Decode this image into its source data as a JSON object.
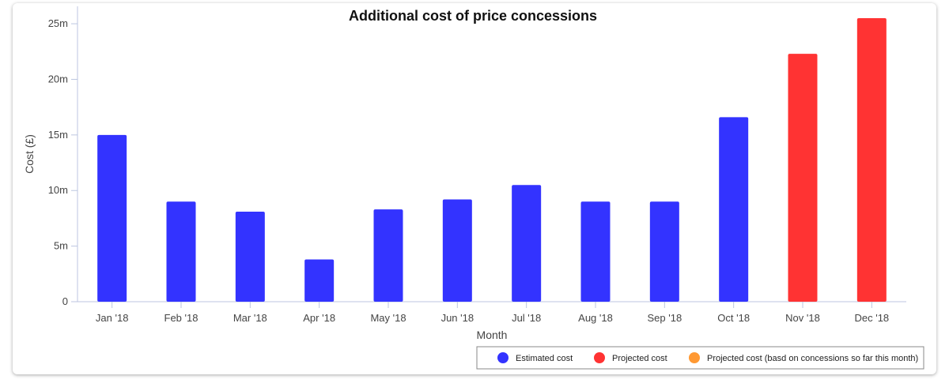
{
  "chart_data": {
    "type": "bar",
    "title": "Additional cost of price concessions",
    "xlabel": "Month",
    "ylabel": "Cost (£)",
    "categories": [
      "Jan '18",
      "Feb '18",
      "Mar '18",
      "Apr '18",
      "May '18",
      "Jun '18",
      "Jul '18",
      "Aug '18",
      "Sep '18",
      "Oct '18",
      "Nov '18",
      "Dec '18"
    ],
    "values": [
      15.0,
      9.0,
      8.1,
      3.8,
      8.3,
      9.2,
      10.5,
      9.0,
      9.0,
      16.6,
      22.3,
      25.5
    ],
    "value_unit": "m",
    "bar_kind": [
      "Estimated cost",
      "Estimated cost",
      "Estimated cost",
      "Estimated cost",
      "Estimated cost",
      "Estimated cost",
      "Estimated cost",
      "Estimated cost",
      "Estimated cost",
      "Estimated cost",
      "Projected cost",
      "Projected cost"
    ],
    "ylim": [
      0,
      26
    ],
    "yticks": [
      0,
      5,
      10,
      15,
      20,
      25
    ],
    "ytick_labels": [
      "0",
      "5m",
      "10m",
      "15m",
      "20m",
      "25m"
    ],
    "grid": false,
    "legend_position": "bottom-right",
    "legend": [
      {
        "label": "Estimated cost",
        "color": "#3333ff"
      },
      {
        "label": "Projected cost",
        "color": "#ff3333"
      },
      {
        "label": "Projected cost (basd on concessions so far this month)",
        "color": "#ff9933"
      }
    ]
  }
}
